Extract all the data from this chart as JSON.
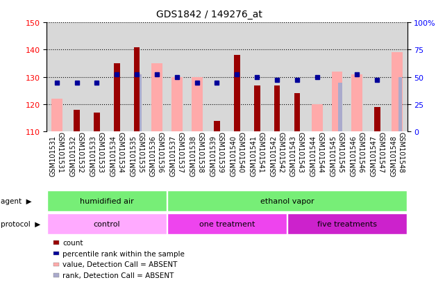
{
  "title": "GDS1842 / 149276_at",
  "samples": [
    "GSM101531",
    "GSM101532",
    "GSM101533",
    "GSM101534",
    "GSM101535",
    "GSM101536",
    "GSM101537",
    "GSM101538",
    "GSM101539",
    "GSM101540",
    "GSM101541",
    "GSM101542",
    "GSM101543",
    "GSM101544",
    "GSM101545",
    "GSM101546",
    "GSM101547",
    "GSM101548"
  ],
  "count_values": [
    null,
    118,
    117,
    135,
    141,
    null,
    null,
    null,
    114,
    138,
    127,
    127,
    124,
    null,
    null,
    null,
    119,
    null
  ],
  "count_absent_values": [
    122,
    null,
    null,
    null,
    null,
    135,
    130,
    130,
    null,
    null,
    null,
    null,
    null,
    120,
    132,
    131,
    null,
    139
  ],
  "rank_values": [
    128,
    128,
    128,
    131,
    131,
    131,
    130,
    128,
    128,
    131,
    130,
    129,
    129,
    130,
    null,
    131,
    129,
    null
  ],
  "rank_absent_values": [
    null,
    null,
    null,
    null,
    131,
    null,
    null,
    null,
    null,
    null,
    null,
    null,
    null,
    null,
    128,
    null,
    null,
    130
  ],
  "ylim_left": [
    110,
    150
  ],
  "ylim_right": [
    0,
    100
  ],
  "yticks_left": [
    110,
    120,
    130,
    140,
    150
  ],
  "yticks_right": [
    0,
    25,
    50,
    75,
    100
  ],
  "color_count": "#990000",
  "color_rank": "#000099",
  "color_count_absent": "#ffaaaa",
  "color_rank_absent": "#aaaacc",
  "agent_labels": [
    "humidified air",
    "ethanol vapor"
  ],
  "agent_color": "#77ee77",
  "protocol_labels": [
    "control",
    "one treatment",
    "five treatments"
  ],
  "protocol_color_control": "#ffaaff",
  "protocol_color_one": "#ee44ee",
  "protocol_color_five": "#cc22cc",
  "legend_items": [
    {
      "label": "count",
      "color": "#990000"
    },
    {
      "label": "percentile rank within the sample",
      "color": "#000099"
    },
    {
      "label": "value, Detection Call = ABSENT",
      "color": "#ffaaaa"
    },
    {
      "label": "rank, Detection Call = ABSENT",
      "color": "#aaaacc"
    }
  ],
  "background_color": "#d8d8d8"
}
